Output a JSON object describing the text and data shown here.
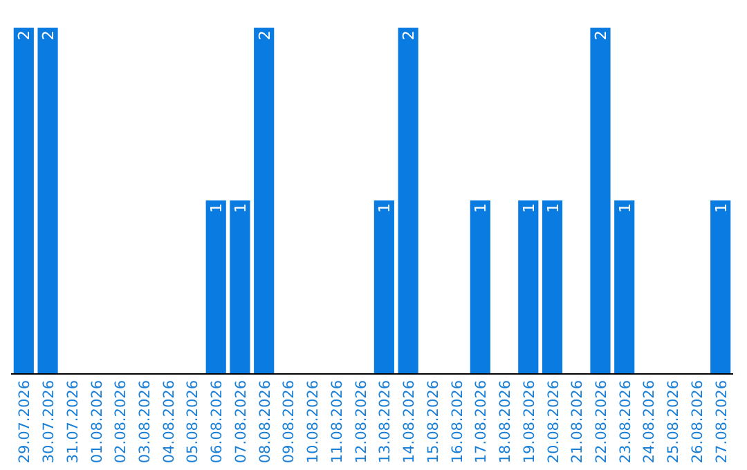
{
  "chart_data": {
    "type": "bar",
    "categories": [
      "29.07.2026",
      "30.07.2026",
      "31.07.2026",
      "01.08.2026",
      "02.08.2026",
      "03.08.2026",
      "04.08.2026",
      "05.08.2026",
      "06.08.2026",
      "07.08.2026",
      "08.08.2026",
      "09.08.2026",
      "10.08.2026",
      "11.08.2026",
      "12.08.2026",
      "13.08.2026",
      "14.08.2026",
      "15.08.2026",
      "16.08.2026",
      "17.08.2026",
      "18.08.2026",
      "19.08.2026",
      "20.08.2026",
      "21.08.2026",
      "22.08.2026",
      "23.08.2026",
      "24.08.2026",
      "25.08.2026",
      "26.08.2026",
      "27.08.2026"
    ],
    "values": [
      2,
      2,
      0,
      0,
      0,
      0,
      0,
      0,
      1,
      1,
      2,
      0,
      0,
      0,
      0,
      1,
      2,
      0,
      0,
      1,
      0,
      1,
      1,
      0,
      2,
      1,
      0,
      0,
      0,
      1
    ],
    "value_labels": [
      "2",
      "2",
      null,
      null,
      null,
      null,
      null,
      null,
      "1",
      "1",
      "2",
      null,
      null,
      null,
      null,
      "1",
      "2",
      null,
      null,
      "1",
      null,
      "1",
      "1",
      null,
      "2",
      "1",
      null,
      null,
      null,
      "1"
    ],
    "color": "#0a7be0"
  }
}
